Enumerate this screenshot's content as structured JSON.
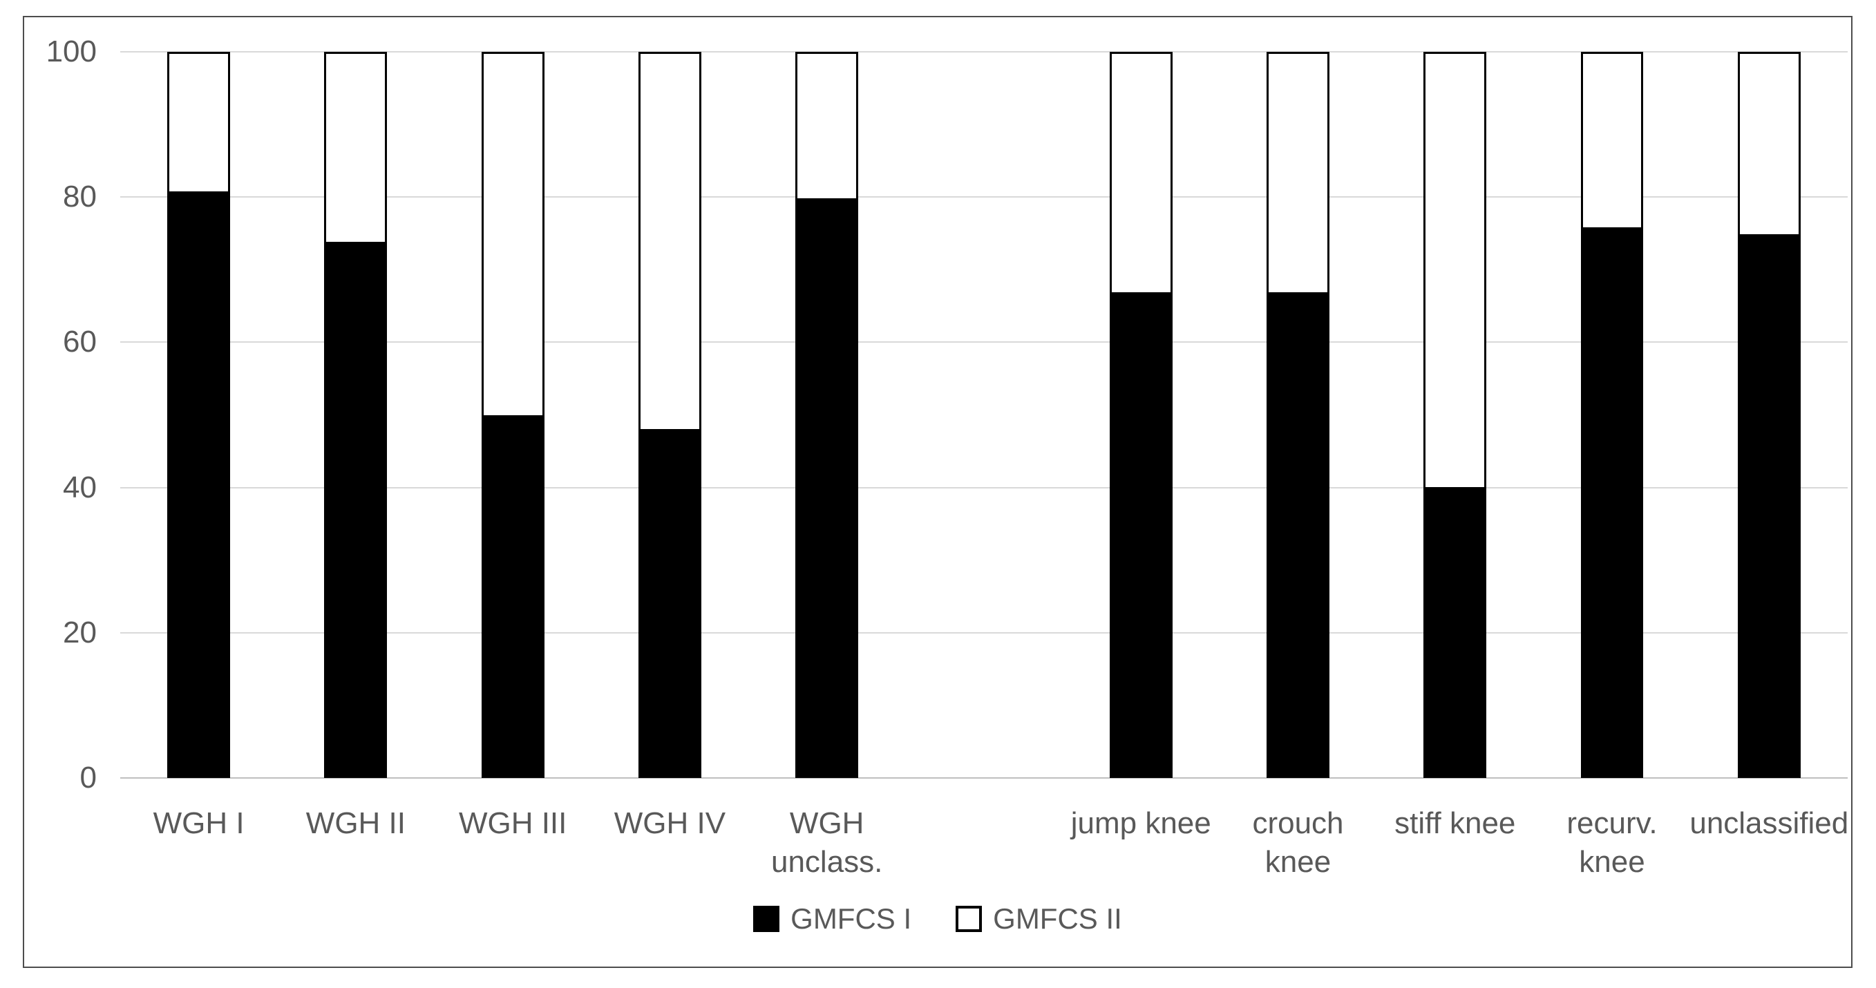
{
  "figure": {
    "background": "#ffffff",
    "border_color": "#4d4d4d"
  },
  "colors": {
    "text": "#595959",
    "gridline": "#d9d9d9",
    "axis_line": "#bfbfbf",
    "bar_border": "#000000",
    "gmfcs1_fill": "#000000",
    "gmfcs2_fill": "#ffffff"
  },
  "chart_data": {
    "type": "bar",
    "stacked": true,
    "percent_total": 100,
    "title": "",
    "xlabel": "",
    "ylabel": "",
    "grid": true,
    "legend_position": "bottom",
    "ylim": [
      0,
      100
    ],
    "yticks": [
      0,
      20,
      40,
      60,
      80,
      100
    ],
    "categories": [
      "WGH I",
      "WGH II",
      "WGH III",
      "WGH IV",
      "WGH\nunclass.",
      "jump knee",
      "crouch\nknee",
      "stiff knee",
      "recurv.\nknee",
      "unclassified"
    ],
    "group_gap_after_index": 4,
    "series": [
      {
        "name": "GMFCS I",
        "color": "#000000",
        "values": [
          81,
          74,
          50,
          48,
          80,
          67,
          67,
          40,
          76,
          75
        ]
      },
      {
        "name": "GMFCS II",
        "color": "#ffffff",
        "values": [
          19,
          26,
          50,
          52,
          20,
          33,
          33,
          60,
          24,
          25
        ]
      }
    ]
  }
}
